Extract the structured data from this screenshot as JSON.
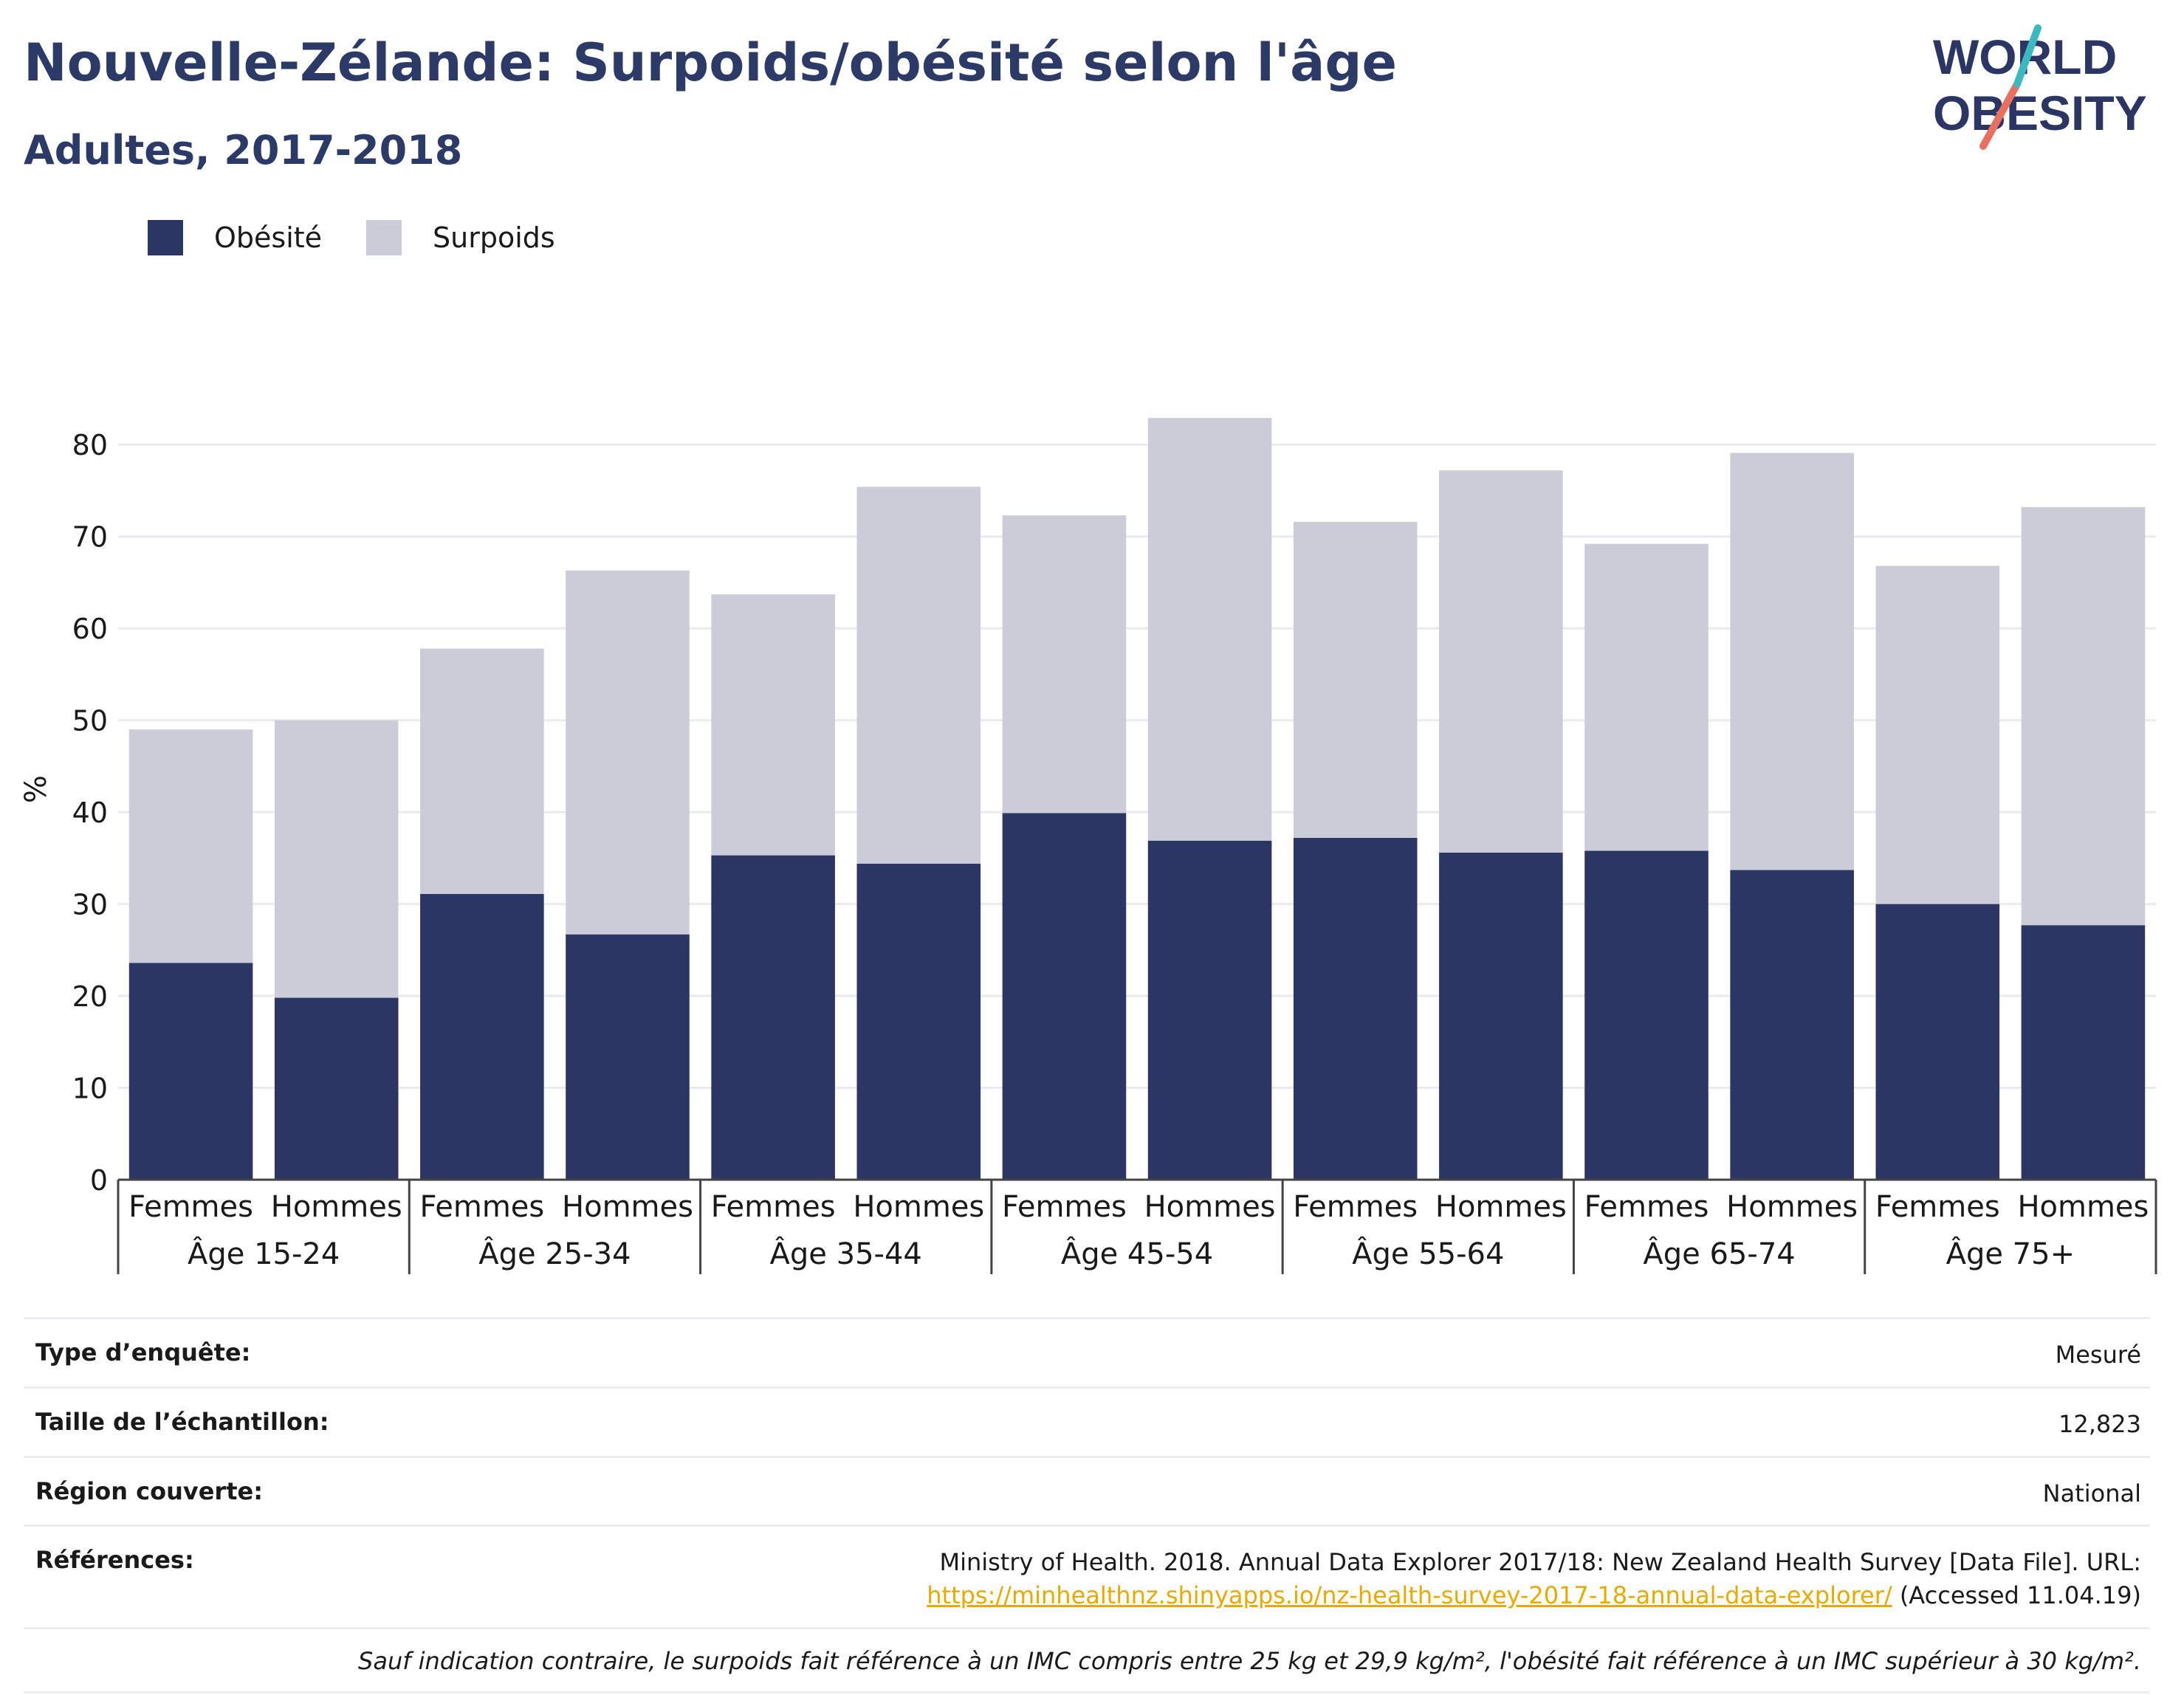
{
  "header": {
    "title": "Nouvelle-Zélande: Surpoids/obésité selon l'âge",
    "subtitle": "Adultes, 2017-2018"
  },
  "logo": {
    "line1": "WORLD",
    "line2": "OBESITY"
  },
  "legend": [
    {
      "label": "Obésité",
      "color": "#2b3664"
    },
    {
      "label": "Surpoids",
      "color": "#cbccd7"
    }
  ],
  "chart_data": {
    "type": "bar",
    "stacked": true,
    "ylabel": "%",
    "ylim": [
      0,
      85
    ],
    "yticks": [
      0,
      10,
      20,
      30,
      40,
      50,
      60,
      70,
      80
    ],
    "grid": true,
    "legend_position": "top-left",
    "groups": [
      "Âge 15-24",
      "Âge 25-34",
      "Âge 35-44",
      "Âge 45-54",
      "Âge 55-64",
      "Âge 65-74",
      "Âge 75+"
    ],
    "subcategories": [
      "Femmes",
      "Hommes"
    ],
    "series": [
      {
        "name": "Obésité",
        "color": "#2b3664",
        "values": [
          23.6,
          19.8,
          31.1,
          26.7,
          35.3,
          34.4,
          39.9,
          36.9,
          37.2,
          35.6,
          35.8,
          33.7,
          30.0,
          27.7
        ]
      },
      {
        "name": "Surpoids",
        "color": "#cbccd7",
        "values": [
          25.4,
          30.2,
          26.7,
          39.6,
          28.4,
          41.0,
          32.4,
          46.0,
          34.4,
          41.6,
          33.4,
          45.4,
          36.8,
          45.5
        ]
      }
    ]
  },
  "info": {
    "survey_type": {
      "label": "Type d’enquête:",
      "value": "Mesuré"
    },
    "sample_size": {
      "label": "Taille de l’échantillon:",
      "value": "12,823"
    },
    "region": {
      "label": "Région couverte:",
      "value": "National"
    },
    "references": {
      "label": "Références:",
      "text": "Ministry of Health. 2018. Annual Data Explorer 2017/18: New Zealand Health Survey [Data File]. URL:",
      "link": "https://minhealthnz.shinyapps.io/nz-health-survey-2017-18-annual-data-explorer/",
      "accessed": " (Accessed 11.04.19)"
    },
    "note": "Sauf indication contraire, le surpoids fait référence à un IMC compris entre 25 kg et 29,9 kg/m², l'obésité fait référence à un IMC supérieur à 30 kg/m²."
  }
}
